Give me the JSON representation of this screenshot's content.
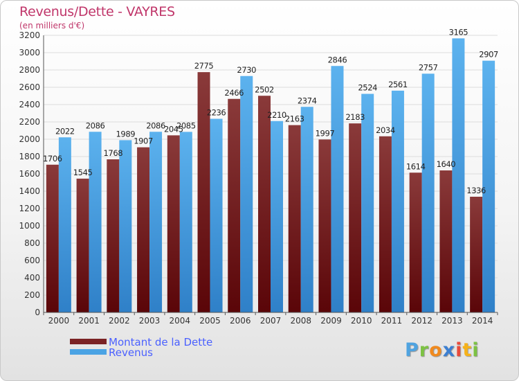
{
  "header": {
    "title": "Revenus/Dette - VAYRES",
    "subtitle": "(en milliers d'€)"
  },
  "colors": {
    "dette": "#7a2224",
    "revenus": "#4aa3e4",
    "title": "#c0366a",
    "legend_text": "#4a60ff"
  },
  "legend": {
    "items": [
      {
        "label": "Montant de la Dette",
        "color": "#7a2224"
      },
      {
        "label": "Revenus",
        "color": "#4aa3e4"
      }
    ]
  },
  "logo": {
    "text": "Proxiti",
    "icon": "proxiti-logo"
  },
  "chart_data": {
    "type": "bar",
    "title": "Revenus/Dette - VAYRES",
    "subtitle": "(en milliers d'€)",
    "categories": [
      "2000",
      "2001",
      "2002",
      "2003",
      "2004",
      "2005",
      "2006",
      "2007",
      "2008",
      "2009",
      "2010",
      "2011",
      "2012",
      "2013",
      "2014"
    ],
    "series": [
      {
        "name": "Montant de la Dette",
        "values": [
          1706,
          1545,
          1768,
          1907,
          2045,
          2775,
          2466,
          2502,
          2163,
          1997,
          2183,
          2034,
          1614,
          1640,
          1336
        ],
        "labels": [
          "1706",
          "1545",
          "1768",
          "1907",
          "2045",
          "2775",
          "2466",
          "2502",
          "2163",
          "1997",
          "2183",
          "2034",
          "1614",
          "1640",
          "1336"
        ]
      },
      {
        "name": "Revenus",
        "values": [
          2022,
          2086,
          1989,
          2086,
          2085,
          2236,
          2730,
          2210,
          2374,
          2846,
          2524,
          2561,
          2757,
          3165,
          2907
        ],
        "labels": [
          "2022",
          "2086",
          "1989",
          "2086",
          "2085",
          "2236",
          "2730",
          "2210",
          "2374",
          "2846",
          "2524",
          "2561",
          "2757",
          "3165",
          "2907"
        ]
      }
    ],
    "ylim": [
      0,
      3200
    ],
    "yticks": [
      0,
      200,
      400,
      600,
      800,
      1000,
      1200,
      1400,
      1600,
      1800,
      2000,
      2200,
      2400,
      2600,
      2800,
      3000,
      3200
    ],
    "grid": true,
    "legend_position": "bottom-left"
  }
}
